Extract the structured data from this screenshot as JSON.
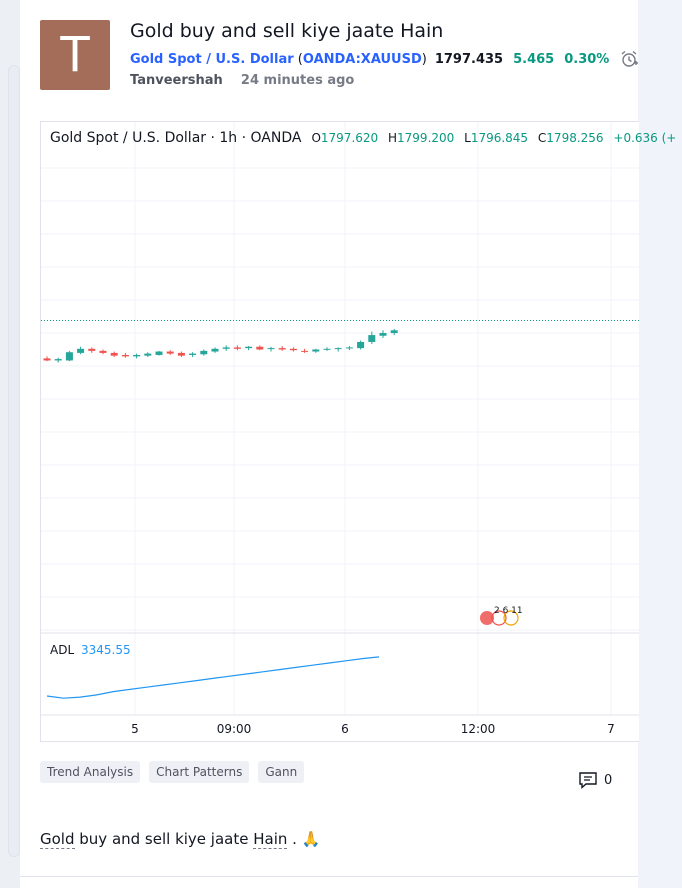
{
  "idea": {
    "avatar_letter": "T",
    "title": "Gold buy and sell kiye jaate Hain",
    "symbol_name": "Gold Spot / U.S. Dollar",
    "ticker": "OANDA:XAUUSD",
    "price": "1797.435",
    "change": "5.465",
    "change_percent": "0.30%",
    "author": "Tanveershah",
    "published": "24 minutes ago"
  },
  "chart": {
    "legend_name": "Gold Spot  /  U.S. Dollar · 1h · OANDA",
    "open_label": "O",
    "open": "1797.620",
    "high_label": "H",
    "high": "1799.200",
    "low_label": "L",
    "low": "1796.845",
    "close_label": "C",
    "close": "1798.256",
    "change_tail": "+0.636 (+",
    "adl_label": "ADL",
    "adl_value": "3345.55",
    "badge_text": "2  6 11"
  },
  "chart_data": {
    "type": "candlestick",
    "x_ticks": [
      "5",
      "09:00",
      "6",
      "12:00",
      "7"
    ],
    "candles": [
      {
        "o": 1791.9,
        "h": 1792.2,
        "l": 1791.5,
        "c": 1791.6
      },
      {
        "o": 1791.6,
        "h": 1792.0,
        "l": 1791.3,
        "c": 1791.8
      },
      {
        "o": 1791.6,
        "h": 1793.0,
        "l": 1791.5,
        "c": 1792.8
      },
      {
        "o": 1792.7,
        "h": 1793.6,
        "l": 1792.5,
        "c": 1793.3
      },
      {
        "o": 1793.3,
        "h": 1793.5,
        "l": 1792.7,
        "c": 1793.0
      },
      {
        "o": 1793.0,
        "h": 1793.2,
        "l": 1792.5,
        "c": 1792.7
      },
      {
        "o": 1792.7,
        "h": 1792.9,
        "l": 1792.1,
        "c": 1792.3
      },
      {
        "o": 1792.4,
        "h": 1792.7,
        "l": 1792.0,
        "c": 1792.2
      },
      {
        "o": 1792.2,
        "h": 1792.6,
        "l": 1791.9,
        "c": 1792.4
      },
      {
        "o": 1792.3,
        "h": 1792.8,
        "l": 1792.1,
        "c": 1792.6
      },
      {
        "o": 1792.4,
        "h": 1793.0,
        "l": 1792.3,
        "c": 1792.9
      },
      {
        "o": 1792.9,
        "h": 1793.1,
        "l": 1792.4,
        "c": 1792.6
      },
      {
        "o": 1792.7,
        "h": 1792.9,
        "l": 1792.1,
        "c": 1792.3
      },
      {
        "o": 1792.4,
        "h": 1792.8,
        "l": 1792.1,
        "c": 1792.6
      },
      {
        "o": 1792.5,
        "h": 1793.2,
        "l": 1792.3,
        "c": 1793.0
      },
      {
        "o": 1792.9,
        "h": 1793.5,
        "l": 1792.7,
        "c": 1793.3
      },
      {
        "o": 1793.3,
        "h": 1793.8,
        "l": 1793.0,
        "c": 1793.5
      },
      {
        "o": 1793.5,
        "h": 1793.8,
        "l": 1793.1,
        "c": 1793.3
      },
      {
        "o": 1793.4,
        "h": 1793.7,
        "l": 1793.1,
        "c": 1793.6
      },
      {
        "o": 1793.6,
        "h": 1793.8,
        "l": 1793.1,
        "c": 1793.2
      },
      {
        "o": 1793.3,
        "h": 1793.6,
        "l": 1792.9,
        "c": 1793.4
      },
      {
        "o": 1793.4,
        "h": 1793.7,
        "l": 1793.0,
        "c": 1793.2
      },
      {
        "o": 1793.3,
        "h": 1793.5,
        "l": 1792.9,
        "c": 1793.1
      },
      {
        "o": 1793.0,
        "h": 1793.3,
        "l": 1792.7,
        "c": 1792.9
      },
      {
        "o": 1792.9,
        "h": 1793.3,
        "l": 1792.7,
        "c": 1793.2
      },
      {
        "o": 1793.2,
        "h": 1793.5,
        "l": 1793.0,
        "c": 1793.3
      },
      {
        "o": 1793.3,
        "h": 1793.5,
        "l": 1792.9,
        "c": 1793.4
      },
      {
        "o": 1793.4,
        "h": 1793.7,
        "l": 1793.1,
        "c": 1793.5
      },
      {
        "o": 1793.4,
        "h": 1794.5,
        "l": 1793.2,
        "c": 1794.3
      },
      {
        "o": 1794.3,
        "h": 1795.8,
        "l": 1794.0,
        "c": 1795.3
      },
      {
        "o": 1795.2,
        "h": 1796.0,
        "l": 1794.9,
        "c": 1795.6
      },
      {
        "o": 1795.6,
        "h": 1796.2,
        "l": 1795.3,
        "c": 1796.0
      }
    ],
    "price_line": 1797.435,
    "y_range": [
      1752,
      1822
    ],
    "adl_series": [
      3310,
      3308,
      3309,
      3311,
      3314,
      3316,
      3318,
      3320,
      3322,
      3324,
      3326,
      3328,
      3330,
      3332,
      3334,
      3336,
      3338,
      3340,
      3342,
      3344,
      3345.55
    ],
    "adl_range": [
      3300,
      3360
    ],
    "up_color": "#26a69a",
    "down_color": "#ef5350",
    "line_color": "#2196f3"
  },
  "tags": [
    "Trend Analysis",
    "Chart Patterns",
    "Gann"
  ],
  "comment_count": "0",
  "description": {
    "w1": "Gold",
    "w2": " buy and sell kiye jaate ",
    "w3": "Hain",
    "w4": " . ",
    "emoji": "🙏"
  }
}
